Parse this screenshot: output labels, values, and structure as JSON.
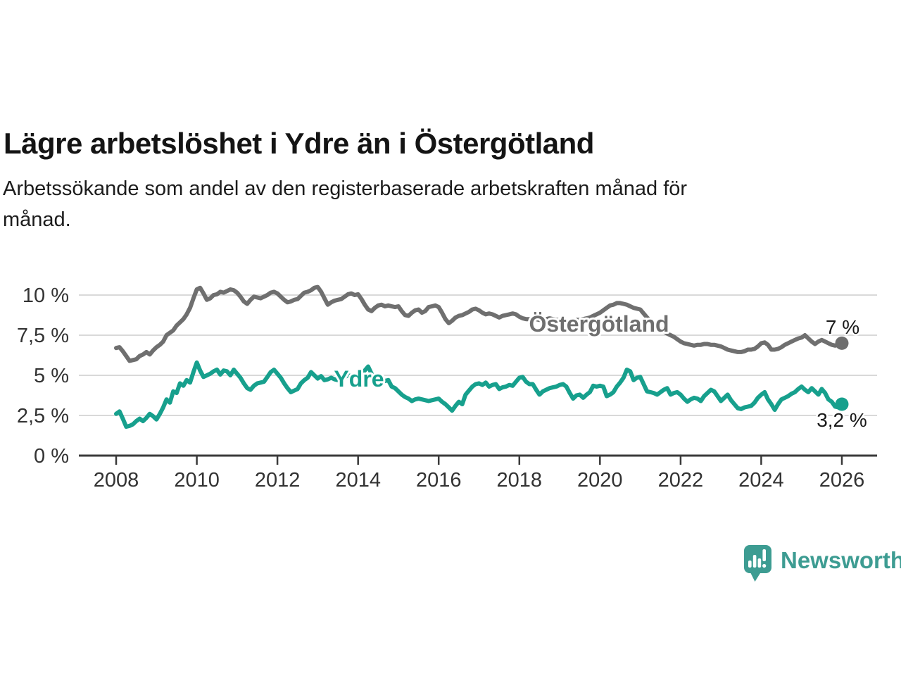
{
  "title": "Lägre arbetslöshet i Ydre än i Östergötland",
  "subtitle_lines": [
    "Arbetssökande som andel av den registerbaserade arbetskraften månad för",
    "månad."
  ],
  "branding": {
    "name": "Newsworthy",
    "logo_icon": "speech-bubble-bar-chart",
    "color": "#3d9c92"
  },
  "chart_data": {
    "type": "line",
    "title": "Lägre arbetslöshet i Ydre än i Östergötland",
    "x_start_year": 2008,
    "x_step_months": 1,
    "x_tick_labels": [
      "2008",
      "2010",
      "2012",
      "2014",
      "2016",
      "2018",
      "2020",
      "2022",
      "2024",
      "2026"
    ],
    "y_tick_labels": [
      "0 %",
      "2,5 %",
      "5 %",
      "7,5 %",
      "10 %"
    ],
    "y_tick_values": [
      0,
      2.5,
      5,
      7.5,
      10
    ],
    "ylim": [
      0,
      10.8
    ],
    "xlim_years": [
      2007.1,
      2026.9
    ],
    "grid": true,
    "unit": "percent",
    "series": [
      {
        "id": "ostergotland",
        "name": "Östergötland",
        "color": "#6f6f6f",
        "end_label": "7 %",
        "end_value": 7.0,
        "values": [
          6.7,
          6.75,
          6.5,
          6.2,
          5.9,
          5.95,
          6.0,
          6.2,
          6.3,
          6.45,
          6.3,
          6.55,
          6.75,
          6.9,
          7.1,
          7.5,
          7.65,
          7.8,
          8.1,
          8.3,
          8.5,
          8.8,
          9.2,
          9.8,
          10.35,
          10.45,
          10.1,
          9.7,
          9.8,
          10.0,
          10.05,
          10.2,
          10.15,
          10.25,
          10.35,
          10.3,
          10.15,
          9.9,
          9.6,
          9.45,
          9.7,
          9.9,
          9.85,
          9.8,
          9.9,
          10.0,
          10.15,
          10.2,
          10.1,
          9.9,
          9.7,
          9.55,
          9.6,
          9.7,
          9.75,
          9.95,
          10.15,
          10.2,
          10.3,
          10.45,
          10.5,
          10.2,
          9.8,
          9.4,
          9.55,
          9.65,
          9.7,
          9.75,
          9.9,
          10.05,
          10.1,
          10.0,
          10.05,
          9.75,
          9.4,
          9.1,
          9.0,
          9.2,
          9.35,
          9.4,
          9.3,
          9.35,
          9.3,
          9.25,
          9.3,
          9.0,
          8.75,
          8.7,
          8.9,
          9.05,
          9.1,
          8.9,
          9.0,
          9.25,
          9.3,
          9.35,
          9.25,
          8.9,
          8.5,
          8.25,
          8.4,
          8.6,
          8.7,
          8.75,
          8.85,
          8.95,
          9.1,
          9.15,
          9.05,
          8.9,
          8.8,
          8.85,
          8.8,
          8.7,
          8.6,
          8.7,
          8.75,
          8.8,
          8.85,
          8.8,
          8.65,
          8.55,
          8.5,
          8.5,
          8.55,
          8.5,
          8.45,
          8.5,
          8.5,
          8.55,
          8.5,
          8.45,
          8.45,
          8.4,
          8.35,
          8.35,
          8.4,
          8.45,
          8.45,
          8.5,
          8.55,
          8.6,
          8.7,
          8.8,
          8.9,
          9.05,
          9.2,
          9.35,
          9.4,
          9.5,
          9.5,
          9.45,
          9.4,
          9.3,
          9.2,
          9.15,
          9.1,
          8.85,
          8.6,
          8.4,
          8.2,
          8.05,
          7.9,
          7.75,
          7.6,
          7.5,
          7.4,
          7.25,
          7.1,
          7.0,
          6.95,
          6.9,
          6.85,
          6.9,
          6.9,
          6.95,
          6.95,
          6.9,
          6.9,
          6.85,
          6.8,
          6.7,
          6.6,
          6.55,
          6.5,
          6.45,
          6.45,
          6.5,
          6.6,
          6.6,
          6.65,
          6.8,
          7.0,
          7.05,
          6.9,
          6.6,
          6.6,
          6.65,
          6.75,
          6.9,
          7.0,
          7.1,
          7.2,
          7.3,
          7.35,
          7.5,
          7.3,
          7.1,
          6.95,
          7.1,
          7.2,
          7.1,
          7.0,
          6.9,
          6.85,
          6.9,
          7.0
        ]
      },
      {
        "id": "ydre",
        "name": "Ydre",
        "color": "#17a08d",
        "end_label": "3,2 %",
        "end_value": 3.2,
        "values": [
          2.6,
          2.75,
          2.3,
          1.8,
          1.85,
          1.95,
          2.15,
          2.3,
          2.15,
          2.35,
          2.6,
          2.45,
          2.25,
          2.6,
          3.0,
          3.5,
          3.3,
          4.0,
          3.9,
          4.5,
          4.35,
          4.7,
          4.55,
          5.2,
          5.8,
          5.3,
          4.9,
          5.0,
          5.1,
          5.25,
          5.35,
          5.05,
          5.3,
          5.25,
          5.0,
          5.35,
          5.1,
          4.85,
          4.5,
          4.2,
          4.1,
          4.35,
          4.5,
          4.55,
          4.6,
          4.9,
          5.2,
          5.35,
          5.1,
          4.85,
          4.5,
          4.2,
          3.95,
          4.05,
          4.15,
          4.5,
          4.7,
          4.85,
          5.2,
          5.0,
          4.8,
          4.95,
          4.7,
          4.75,
          4.85,
          4.75,
          4.7,
          4.8,
          4.9,
          5.0,
          4.95,
          5.0,
          5.05,
          5.15,
          5.3,
          5.55,
          5.1,
          4.8,
          4.5,
          4.75,
          4.65,
          4.7,
          4.3,
          4.2,
          4.0,
          3.8,
          3.65,
          3.55,
          3.4,
          3.5,
          3.55,
          3.5,
          3.45,
          3.4,
          3.45,
          3.5,
          3.55,
          3.35,
          3.2,
          3.0,
          2.8,
          3.1,
          3.35,
          3.2,
          3.8,
          4.05,
          4.3,
          4.45,
          4.5,
          4.4,
          4.55,
          4.3,
          4.4,
          4.45,
          4.15,
          4.25,
          4.3,
          4.4,
          4.35,
          4.6,
          4.85,
          4.9,
          4.6,
          4.45,
          4.45,
          4.1,
          3.8,
          4.0,
          4.1,
          4.2,
          4.25,
          4.3,
          4.4,
          4.45,
          4.3,
          3.9,
          3.55,
          3.75,
          3.8,
          3.6,
          3.8,
          3.95,
          4.35,
          4.3,
          4.35,
          4.3,
          3.7,
          3.8,
          3.95,
          4.3,
          4.55,
          4.85,
          5.35,
          5.25,
          4.7,
          4.85,
          4.9,
          4.45,
          4.0,
          3.95,
          3.9,
          3.8,
          3.95,
          4.1,
          4.2,
          3.8,
          3.9,
          3.95,
          3.8,
          3.55,
          3.35,
          3.5,
          3.6,
          3.55,
          3.4,
          3.7,
          3.9,
          4.1,
          4.0,
          3.7,
          3.4,
          3.6,
          3.8,
          3.45,
          3.2,
          2.95,
          2.9,
          3.0,
          3.05,
          3.1,
          3.3,
          3.6,
          3.8,
          3.95,
          3.5,
          3.2,
          2.85,
          3.2,
          3.5,
          3.6,
          3.7,
          3.85,
          3.95,
          4.15,
          4.3,
          4.1,
          3.95,
          4.2,
          4.0,
          3.8,
          4.15,
          3.9,
          3.5,
          3.35,
          3.05,
          3.0,
          3.2
        ]
      }
    ]
  }
}
